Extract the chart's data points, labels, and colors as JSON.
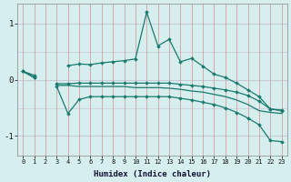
{
  "xlabel": "Humidex (Indice chaleur)",
  "bg_color": "#d6eeee",
  "line_color": "#1a7a6e",
  "grid_color_v": "#d4a0a0",
  "grid_color_h": "#c8c8d8",
  "xlim": [
    -0.5,
    23.5
  ],
  "ylim": [
    -1.35,
    1.35
  ],
  "xticks": [
    0,
    1,
    2,
    3,
    4,
    5,
    6,
    7,
    8,
    9,
    10,
    11,
    12,
    13,
    14,
    15,
    16,
    17,
    18,
    19,
    20,
    21,
    22,
    23
  ],
  "yticks": [
    -1,
    0,
    1
  ],
  "y1": [
    0.15,
    0.08,
    null,
    null,
    0.25,
    0.28,
    0.27,
    0.3,
    0.32,
    0.34,
    0.37,
    1.2,
    0.6,
    0.72,
    0.32,
    0.38,
    0.24,
    0.1,
    0.04,
    -0.06,
    -0.18,
    -0.3,
    -0.52,
    -0.54
  ],
  "y2": [
    0.15,
    0.04,
    null,
    -0.07,
    -0.07,
    -0.06,
    -0.06,
    -0.06,
    -0.06,
    -0.06,
    -0.06,
    -0.06,
    -0.06,
    -0.06,
    -0.08,
    -0.1,
    -0.12,
    -0.15,
    -0.18,
    -0.22,
    -0.28,
    -0.38,
    -0.52,
    -0.55
  ],
  "y3": [
    0.15,
    0.04,
    null,
    -0.1,
    -0.1,
    -0.12,
    -0.12,
    -0.12,
    -0.12,
    -0.12,
    -0.14,
    -0.14,
    -0.14,
    -0.15,
    -0.17,
    -0.2,
    -0.22,
    -0.26,
    -0.3,
    -0.36,
    -0.44,
    -0.55,
    -0.58,
    -0.6
  ],
  "y4": [
    0.15,
    0.04,
    null,
    -0.12,
    -0.6,
    -0.35,
    -0.3,
    -0.3,
    -0.3,
    -0.3,
    -0.3,
    -0.3,
    -0.3,
    -0.3,
    -0.33,
    -0.36,
    -0.4,
    -0.44,
    -0.5,
    -0.58,
    -0.68,
    -0.8,
    -1.08,
    -1.1
  ]
}
